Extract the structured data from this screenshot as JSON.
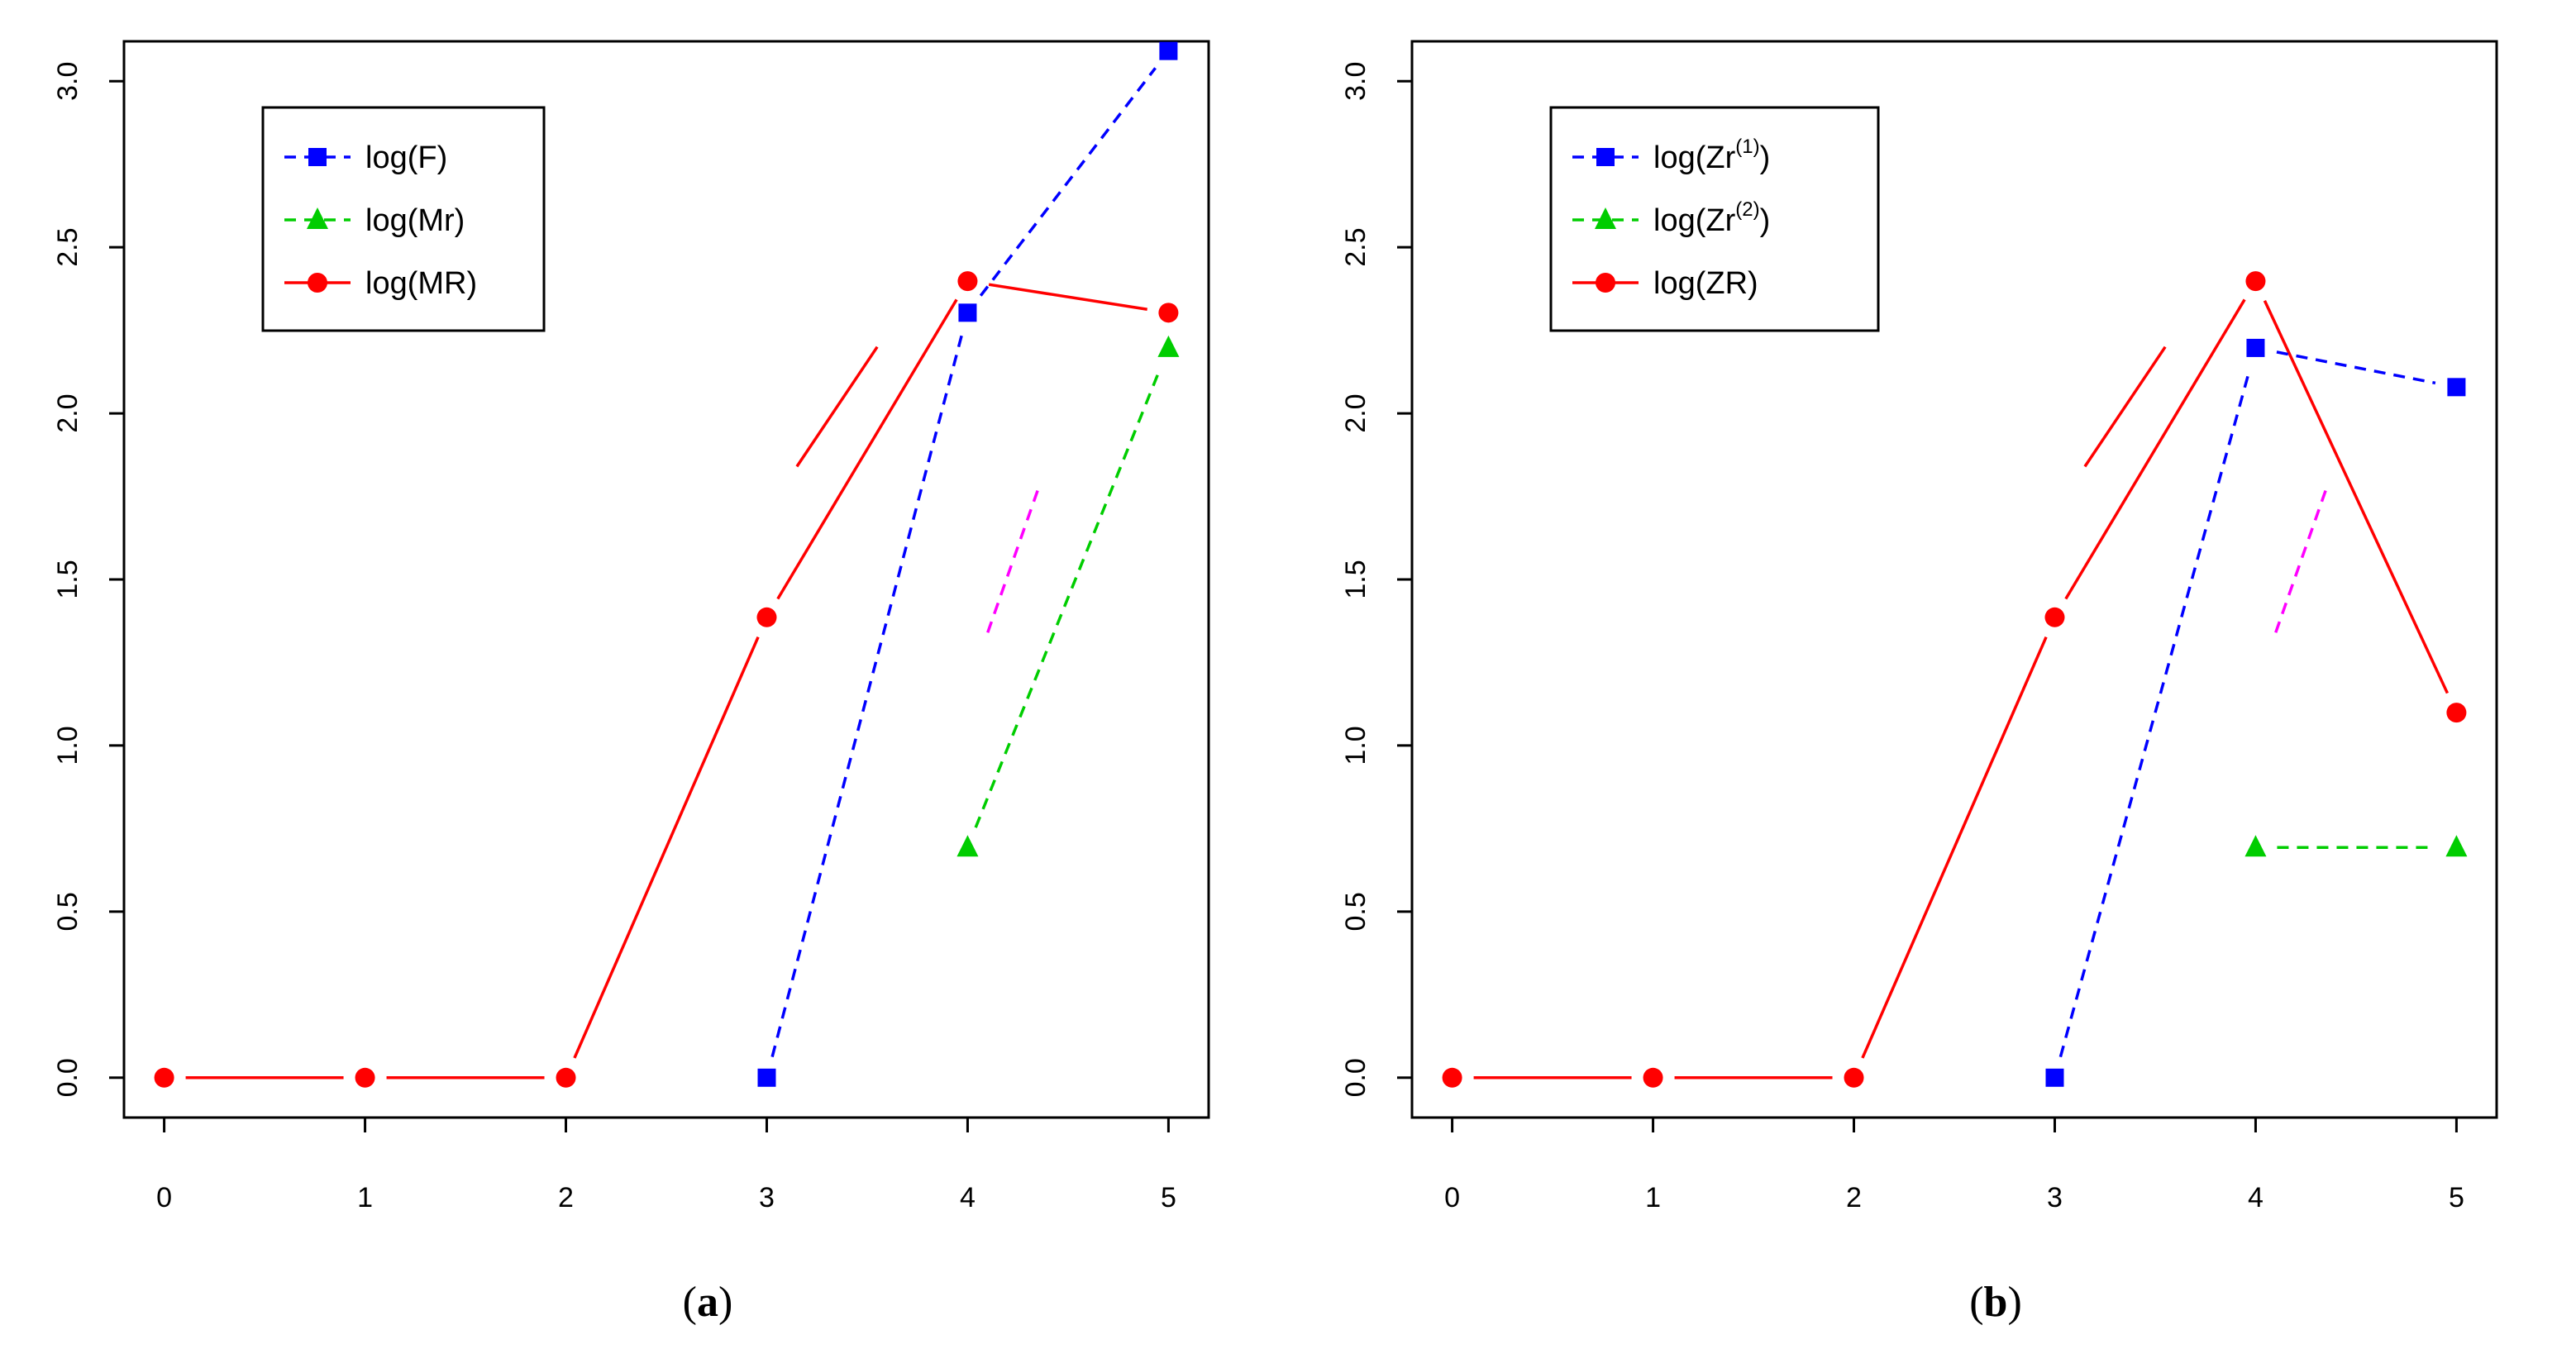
{
  "chart_data": [
    {
      "type": "line",
      "caption_letter": "a",
      "caption_open": "(",
      "caption_close": ")",
      "x": [
        0,
        1,
        2,
        3,
        4,
        5
      ],
      "xlim": [
        -0.2,
        5.2
      ],
      "ylim": [
        -0.12,
        3.12
      ],
      "x_ticks": [
        "0",
        "1",
        "2",
        "3",
        "4",
        "5"
      ],
      "y_ticks": [
        "0.0",
        "0.5",
        "1.0",
        "1.5",
        "2.0",
        "2.5",
        "3.0"
      ],
      "series": [
        {
          "name": "log(MR)",
          "label_main": "log(MR)",
          "label_sup": "",
          "label_close": "",
          "color": "#ff0000",
          "dash": "solid",
          "marker": "circle",
          "points": [
            [
              0,
              0.0
            ],
            [
              1,
              0.0
            ],
            [
              2,
              0.0
            ],
            [
              3,
              1.386
            ],
            [
              4,
              2.398
            ],
            [
              5,
              2.303
            ]
          ]
        },
        {
          "name": "log(F)",
          "label_main": "log(F)",
          "label_sup": "",
          "label_close": "",
          "color": "#0000ff",
          "dash": "dashed",
          "marker": "square",
          "points": [
            [
              3,
              0.0
            ],
            [
              4,
              2.303
            ],
            [
              5,
              3.091
            ]
          ]
        },
        {
          "name": "log(Mr)",
          "label_main": "log(Mr)",
          "label_sup": "",
          "label_close": "",
          "color": "#00cd00",
          "dash": "dashed",
          "marker": "triangle",
          "points": [
            [
              4,
              0.693
            ],
            [
              5,
              2.197
            ]
          ]
        }
      ],
      "legend_order": [
        1,
        2,
        0
      ],
      "legend": "top-left",
      "annotation_segments": [
        {
          "color": "#ff0000",
          "dash": "solid",
          "from": [
            3.15,
            1.84
          ],
          "to": [
            3.55,
            2.2
          ]
        },
        {
          "color": "#ff00ff",
          "dash": "dashed",
          "from": [
            4.1,
            1.34
          ],
          "to": [
            4.35,
            1.77
          ]
        }
      ]
    },
    {
      "type": "line",
      "caption_letter": "b",
      "caption_open": "(",
      "caption_close": ")",
      "x": [
        0,
        1,
        2,
        3,
        4,
        5
      ],
      "xlim": [
        -0.2,
        5.2
      ],
      "ylim": [
        -0.12,
        3.12
      ],
      "x_ticks": [
        "0",
        "1",
        "2",
        "3",
        "4",
        "5"
      ],
      "y_ticks": [
        "0.0",
        "0.5",
        "1.0",
        "1.5",
        "2.0",
        "2.5",
        "3.0"
      ],
      "series": [
        {
          "name": "log(ZR)",
          "label_main": "log(ZR)",
          "label_sup": "",
          "label_close": "",
          "color": "#ff0000",
          "dash": "solid",
          "marker": "circle",
          "points": [
            [
              0,
              0.0
            ],
            [
              1,
              0.0
            ],
            [
              2,
              0.0
            ],
            [
              3,
              1.386
            ],
            [
              4,
              2.398
            ],
            [
              5,
              1.099
            ]
          ]
        },
        {
          "name": "log(Zr(1))",
          "label_main": "log(Zr",
          "label_sup": "(1)",
          "label_close": ")",
          "color": "#0000ff",
          "dash": "dashed",
          "marker": "square",
          "points": [
            [
              3,
              0.0
            ],
            [
              4,
              2.197
            ],
            [
              5,
              2.079
            ]
          ]
        },
        {
          "name": "log(Zr(2))",
          "label_main": "log(Zr",
          "label_sup": "(2)",
          "label_close": ")",
          "color": "#00cd00",
          "dash": "dashed",
          "marker": "triangle",
          "points": [
            [
              4,
              0.693
            ],
            [
              5,
              0.693
            ]
          ]
        }
      ],
      "legend_order": [
        1,
        2,
        0
      ],
      "legend": "top-left",
      "annotation_segments": [
        {
          "color": "#ff0000",
          "dash": "solid",
          "from": [
            3.15,
            1.84
          ],
          "to": [
            3.55,
            2.2
          ]
        },
        {
          "color": "#ff00ff",
          "dash": "dashed",
          "from": [
            4.1,
            1.34
          ],
          "to": [
            4.35,
            1.77
          ]
        }
      ]
    }
  ]
}
